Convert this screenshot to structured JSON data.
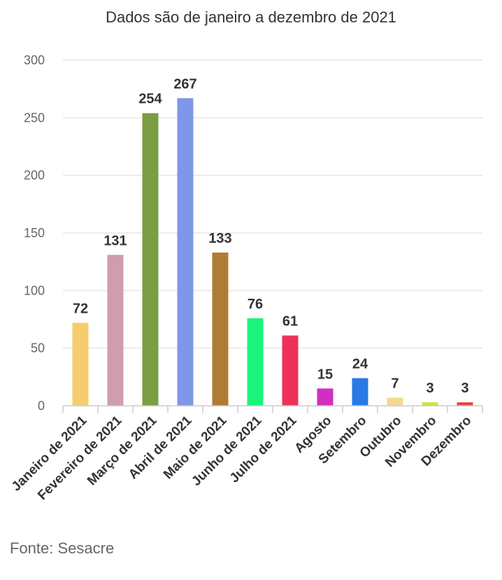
{
  "source": "Fonte: Sesacre",
  "chart_data": {
    "type": "bar",
    "title": "Dados são de janeiro a dezembro de 2021",
    "xlabel": "",
    "ylabel": "",
    "ylim": [
      0,
      300
    ],
    "yticks": [
      0,
      50,
      100,
      150,
      200,
      250,
      300
    ],
    "grid": true,
    "categories": [
      "Janeiro de 2021",
      "Fevereiro de 2021",
      "Março de 2021",
      "Abril de 2021",
      "Maio de 2021",
      "Junho de 2021",
      "Julho de 2021",
      "Agosto",
      "Setembro",
      "Outubro",
      "Novembro",
      "Dezembro"
    ],
    "values": [
      72,
      131,
      254,
      267,
      133,
      76,
      61,
      15,
      24,
      7,
      3,
      3
    ],
    "colors": [
      "#f6cd6c",
      "#cf9dac",
      "#7b9e43",
      "#7f97e8",
      "#b07c34",
      "#1af57a",
      "#ef3159",
      "#d22fc0",
      "#2979e6",
      "#f5d88e",
      "#cde24a",
      "#e2473d"
    ],
    "gridColor": "#e6e6e6",
    "axisColor": "#cccccc"
  }
}
